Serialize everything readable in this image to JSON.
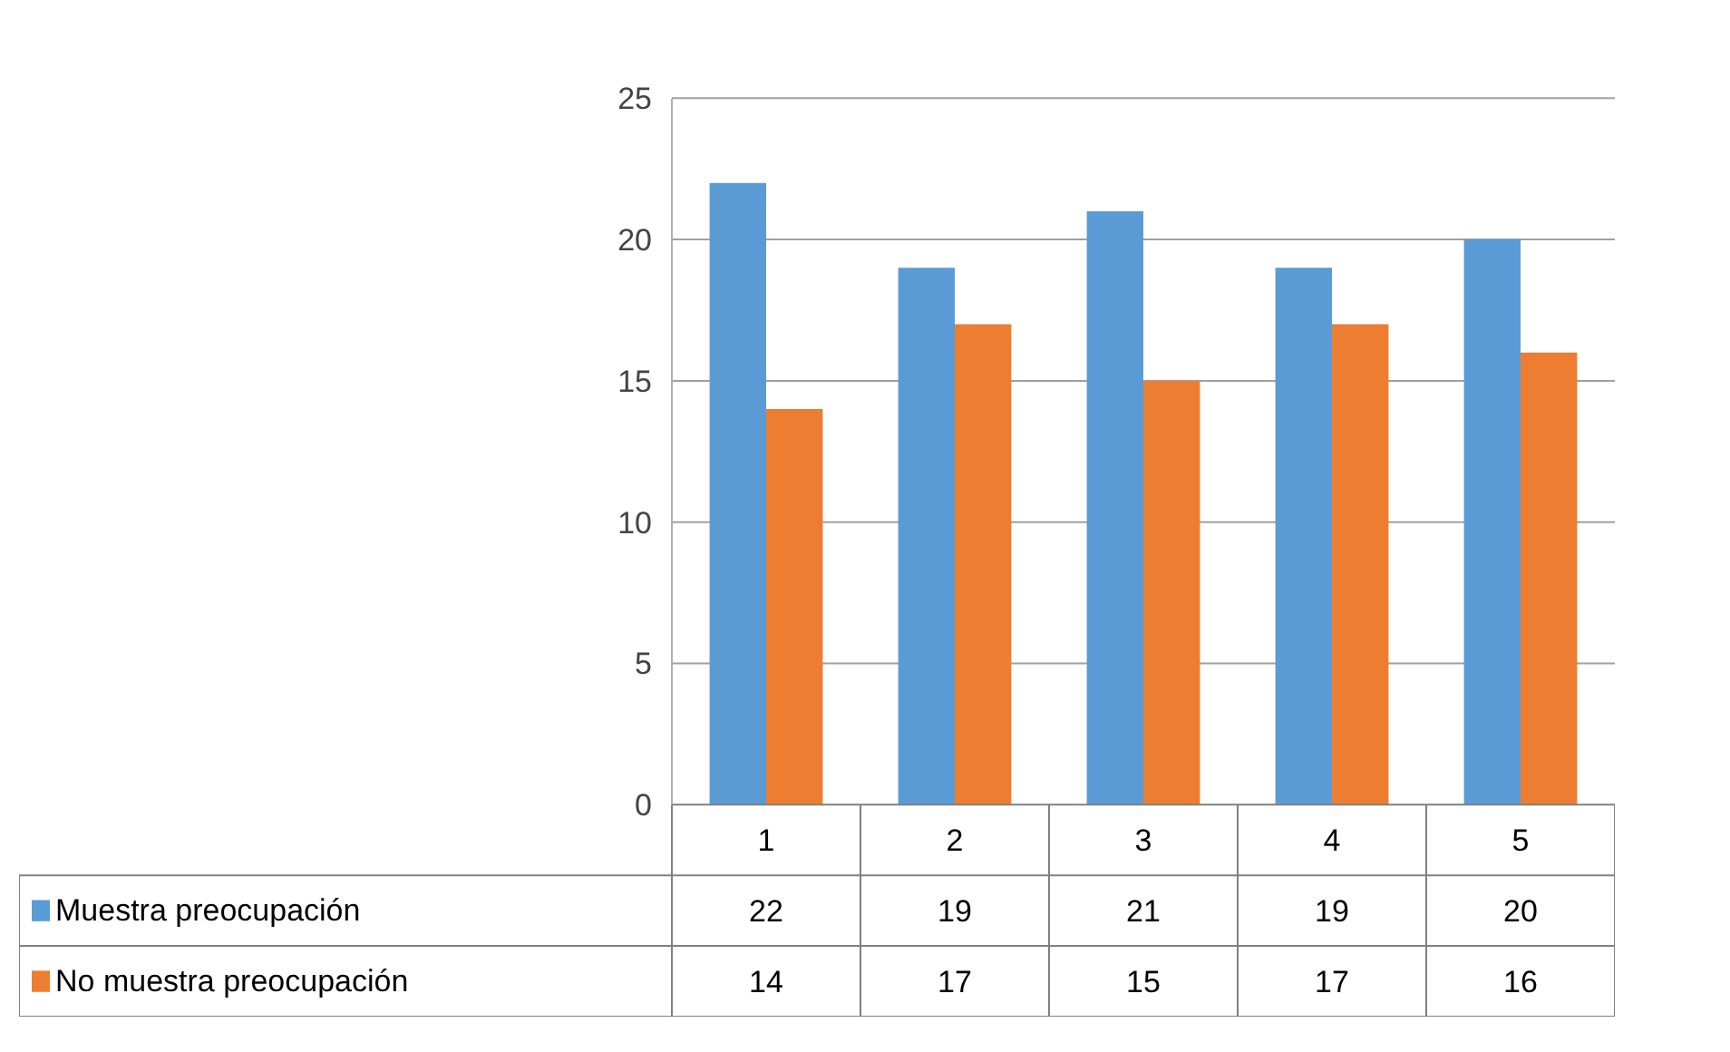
{
  "chart_data": {
    "type": "bar",
    "categories": [
      "1",
      "2",
      "3",
      "4",
      "5"
    ],
    "series": [
      {
        "name": "Muestra preocupación",
        "color": "#5b9bd5",
        "values": [
          22,
          19,
          21,
          19,
          20
        ]
      },
      {
        "name": "No muestra preocupación",
        "color": "#ed7d31",
        "values": [
          14,
          17,
          15,
          17,
          16
        ]
      }
    ],
    "ylim": [
      0,
      25
    ],
    "yticks": [
      0,
      5,
      10,
      15,
      20,
      25
    ],
    "grid": "y",
    "data_labels": true,
    "legend": "bottom"
  }
}
